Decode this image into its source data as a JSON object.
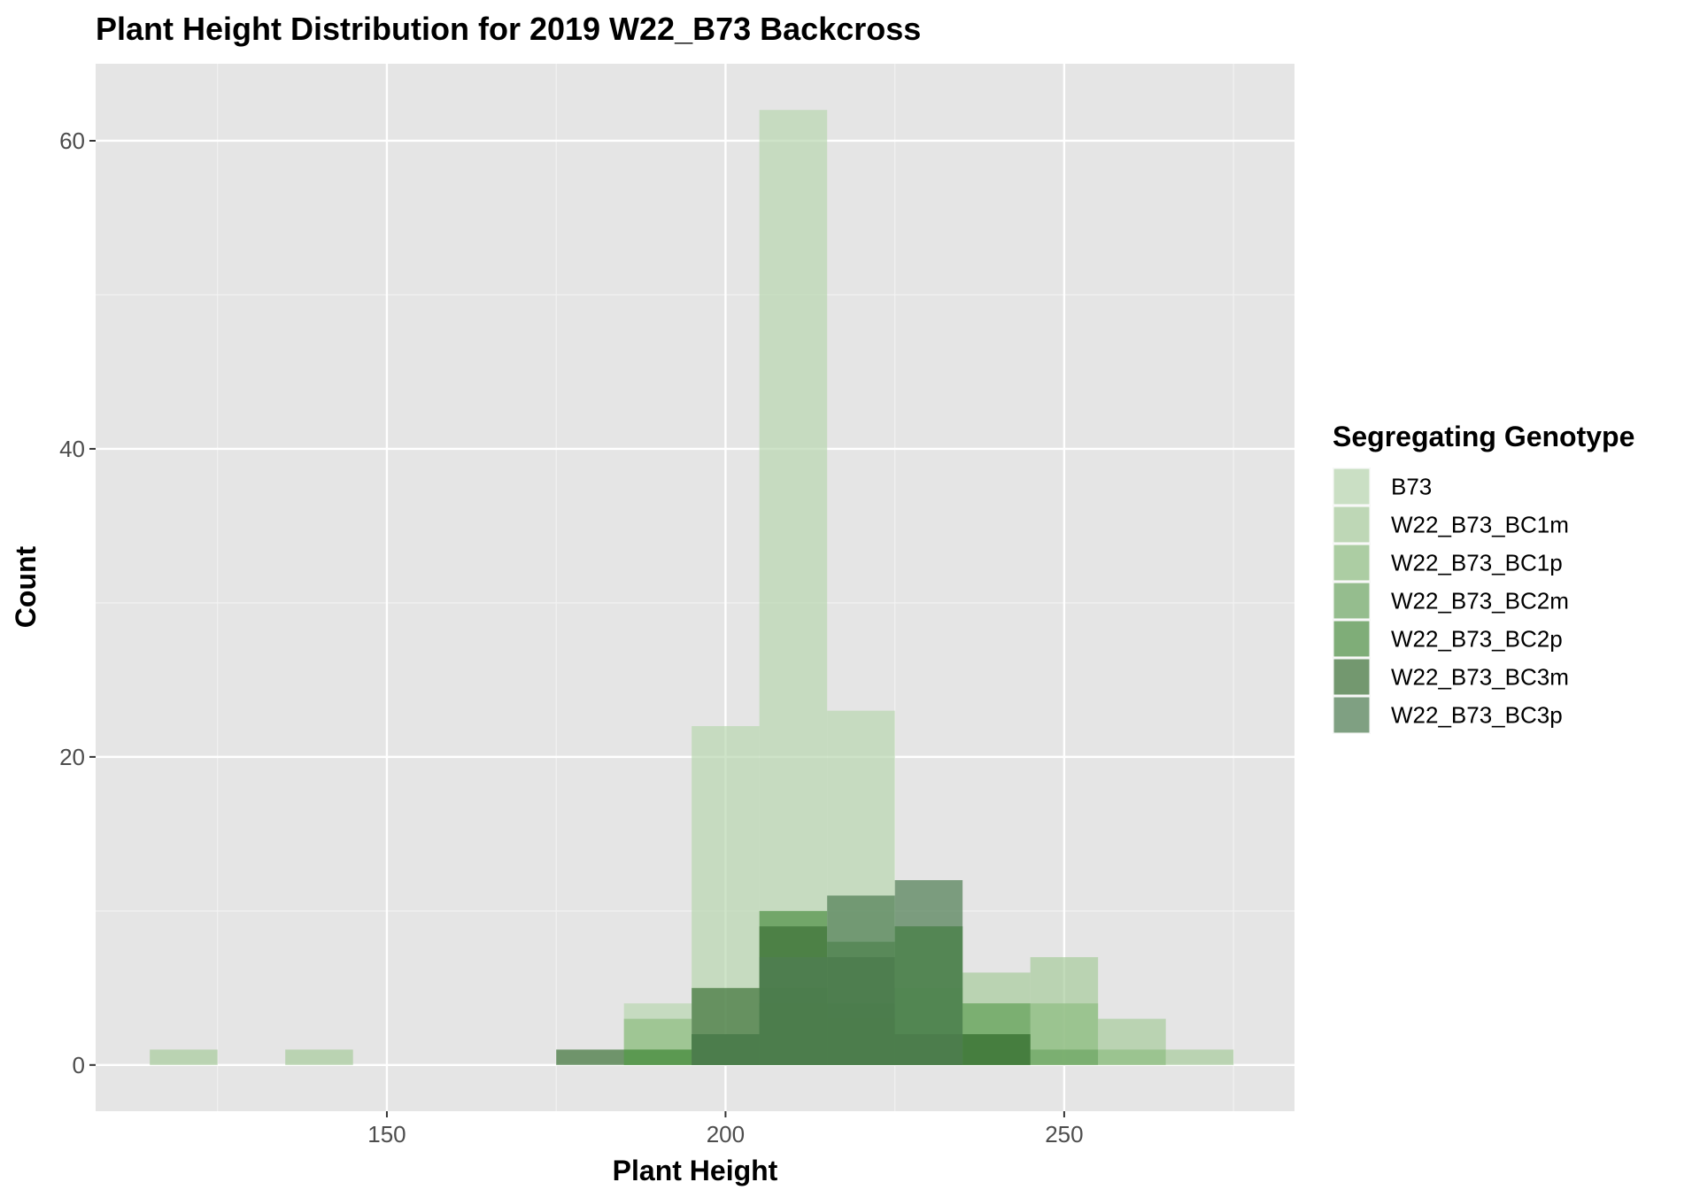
{
  "chart_data": {
    "type": "bar",
    "title": "Plant Height Distribution for 2019 W22_B73 Backcross",
    "xlabel": "Plant Height",
    "ylabel": "Count",
    "xlim": [
      107,
      284
    ],
    "ylim": [
      -3,
      65
    ],
    "x_ticks": [
      150,
      200,
      250
    ],
    "y_ticks": [
      0,
      20,
      40,
      60
    ],
    "x_tick_labels": [
      "150",
      "200",
      "250"
    ],
    "y_tick_labels": [
      "0",
      "20",
      "40",
      "60"
    ],
    "bin_width": 10,
    "bin_centers": [
      120,
      130,
      140,
      150,
      160,
      170,
      180,
      190,
      200,
      210,
      220,
      230,
      240,
      250,
      260,
      270
    ],
    "grid": true,
    "legend_title": "Segregating Genotype",
    "legend_position": "right",
    "series": [
      {
        "name": "B73",
        "color": "#b9d7b0",
        "values": [
          0,
          0,
          0,
          0,
          0,
          0,
          0,
          4,
          22,
          62,
          23,
          0,
          0,
          0,
          0,
          0
        ]
      },
      {
        "name": "W22_B73_BC1m",
        "color": "#a8cc9c",
        "values": [
          1,
          0,
          1,
          0,
          0,
          0,
          0,
          1,
          1,
          3,
          2,
          3,
          6,
          7,
          3,
          1
        ]
      },
      {
        "name": "W22_B73_BC1p",
        "color": "#8fbd82",
        "values": [
          0,
          0,
          0,
          0,
          0,
          0,
          0,
          3,
          2,
          4,
          3,
          5,
          4,
          4,
          1,
          0
        ]
      },
      {
        "name": "W22_B73_BC2m",
        "color": "#6ea764",
        "values": [
          0,
          0,
          0,
          0,
          0,
          0,
          0,
          1,
          2,
          5,
          4,
          9,
          4,
          1,
          0,
          0
        ]
      },
      {
        "name": "W22_B73_BC2p",
        "color": "#4e9045",
        "values": [
          0,
          0,
          0,
          0,
          0,
          0,
          0,
          1,
          2,
          10,
          8,
          9,
          2,
          0,
          0,
          0
        ]
      },
      {
        "name": "W22_B73_BC3m",
        "color": "#3d7238",
        "values": [
          0,
          0,
          0,
          0,
          0,
          0,
          1,
          0,
          5,
          9,
          7,
          2,
          2,
          0,
          0,
          0
        ]
      },
      {
        "name": "W22_B73_BC3p",
        "color": "#4f7e52",
        "values": [
          0,
          0,
          0,
          0,
          0,
          0,
          0,
          0,
          2,
          7,
          11,
          12,
          0,
          0,
          0,
          0
        ]
      }
    ]
  }
}
